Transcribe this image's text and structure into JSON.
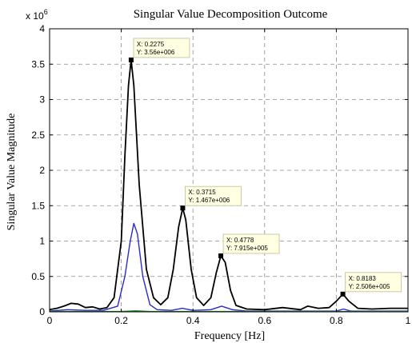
{
  "chart_data": {
    "type": "line",
    "title": "Singular Value Decomposition Outcome",
    "xlabel": "Frequency [Hz]",
    "ylabel": "Singular Value Magnitude",
    "y_exponent_label": "x 10",
    "y_exponent_power": "6",
    "xlim": [
      0,
      1
    ],
    "ylim": [
      0,
      4000000
    ],
    "grid": true,
    "x_ticks": [
      "0",
      "0.2",
      "0.4",
      "0.6",
      "0.8",
      "1"
    ],
    "x_tick_values": [
      0,
      0.2,
      0.4,
      0.6,
      0.8,
      1
    ],
    "y_ticks": [
      "0",
      "0.5",
      "1",
      "1.5",
      "2",
      "2.5",
      "3",
      "3.5",
      "4"
    ],
    "y_tick_values": [
      0,
      500000,
      1000000,
      1500000,
      2000000,
      2500000,
      3000000,
      3500000,
      4000000
    ],
    "series": [
      {
        "color": "#000000",
        "points": [
          [
            0,
            30000
          ],
          [
            0.02,
            50000
          ],
          [
            0.04,
            80000
          ],
          [
            0.06,
            120000
          ],
          [
            0.08,
            110000
          ],
          [
            0.1,
            60000
          ],
          [
            0.12,
            70000
          ],
          [
            0.14,
            40000
          ],
          [
            0.16,
            60000
          ],
          [
            0.18,
            200000
          ],
          [
            0.2,
            1000000
          ],
          [
            0.21,
            2200000
          ],
          [
            0.22,
            3200000
          ],
          [
            0.2275,
            3560000
          ],
          [
            0.235,
            3200000
          ],
          [
            0.25,
            1800000
          ],
          [
            0.27,
            600000
          ],
          [
            0.29,
            200000
          ],
          [
            0.31,
            100000
          ],
          [
            0.33,
            200000
          ],
          [
            0.345,
            600000
          ],
          [
            0.36,
            1200000
          ],
          [
            0.3715,
            1467000
          ],
          [
            0.38,
            1300000
          ],
          [
            0.395,
            600000
          ],
          [
            0.41,
            200000
          ],
          [
            0.43,
            90000
          ],
          [
            0.45,
            200000
          ],
          [
            0.465,
            550000
          ],
          [
            0.4778,
            791500
          ],
          [
            0.49,
            700000
          ],
          [
            0.505,
            300000
          ],
          [
            0.52,
            90000
          ],
          [
            0.55,
            40000
          ],
          [
            0.6,
            30000
          ],
          [
            0.65,
            60000
          ],
          [
            0.7,
            30000
          ],
          [
            0.72,
            80000
          ],
          [
            0.75,
            50000
          ],
          [
            0.78,
            60000
          ],
          [
            0.8,
            150000
          ],
          [
            0.8183,
            250600
          ],
          [
            0.835,
            150000
          ],
          [
            0.86,
            50000
          ],
          [
            0.9,
            40000
          ],
          [
            0.95,
            50000
          ],
          [
            1,
            50000
          ]
        ]
      },
      {
        "color": "#2a2ad0",
        "points": [
          [
            0,
            10000
          ],
          [
            0.05,
            30000
          ],
          [
            0.1,
            20000
          ],
          [
            0.15,
            20000
          ],
          [
            0.19,
            80000
          ],
          [
            0.21,
            500000
          ],
          [
            0.225,
            1000000
          ],
          [
            0.235,
            1250000
          ],
          [
            0.245,
            1100000
          ],
          [
            0.26,
            500000
          ],
          [
            0.28,
            100000
          ],
          [
            0.3,
            30000
          ],
          [
            0.34,
            20000
          ],
          [
            0.37,
            50000
          ],
          [
            0.4,
            20000
          ],
          [
            0.45,
            30000
          ],
          [
            0.48,
            80000
          ],
          [
            0.51,
            30000
          ],
          [
            0.55,
            10000
          ],
          [
            0.7,
            10000
          ],
          [
            0.8,
            10000
          ],
          [
            0.82,
            40000
          ],
          [
            0.84,
            10000
          ],
          [
            1,
            10000
          ]
        ]
      },
      {
        "color": "#2a8a2a",
        "points": [
          [
            0,
            5000
          ],
          [
            0.2,
            5000
          ],
          [
            0.24,
            15000
          ],
          [
            0.28,
            5000
          ],
          [
            0.5,
            5000
          ],
          [
            0.75,
            5000
          ],
          [
            1,
            5000
          ]
        ]
      }
    ],
    "annotations": [
      {
        "x": 0.2275,
        "y": 3560000,
        "line1": "X: 0.2275",
        "line2": "Y: 3.56e+006"
      },
      {
        "x": 0.3715,
        "y": 1467000,
        "line1": "X: 0.3715",
        "line2": "Y: 1.467e+006"
      },
      {
        "x": 0.4778,
        "y": 791500,
        "line1": "X: 0.4778",
        "line2": "Y: 7.915e+005"
      },
      {
        "x": 0.8183,
        "y": 250600,
        "line1": "X: 0.8183",
        "line2": "Y: 2.506e+005"
      }
    ]
  }
}
